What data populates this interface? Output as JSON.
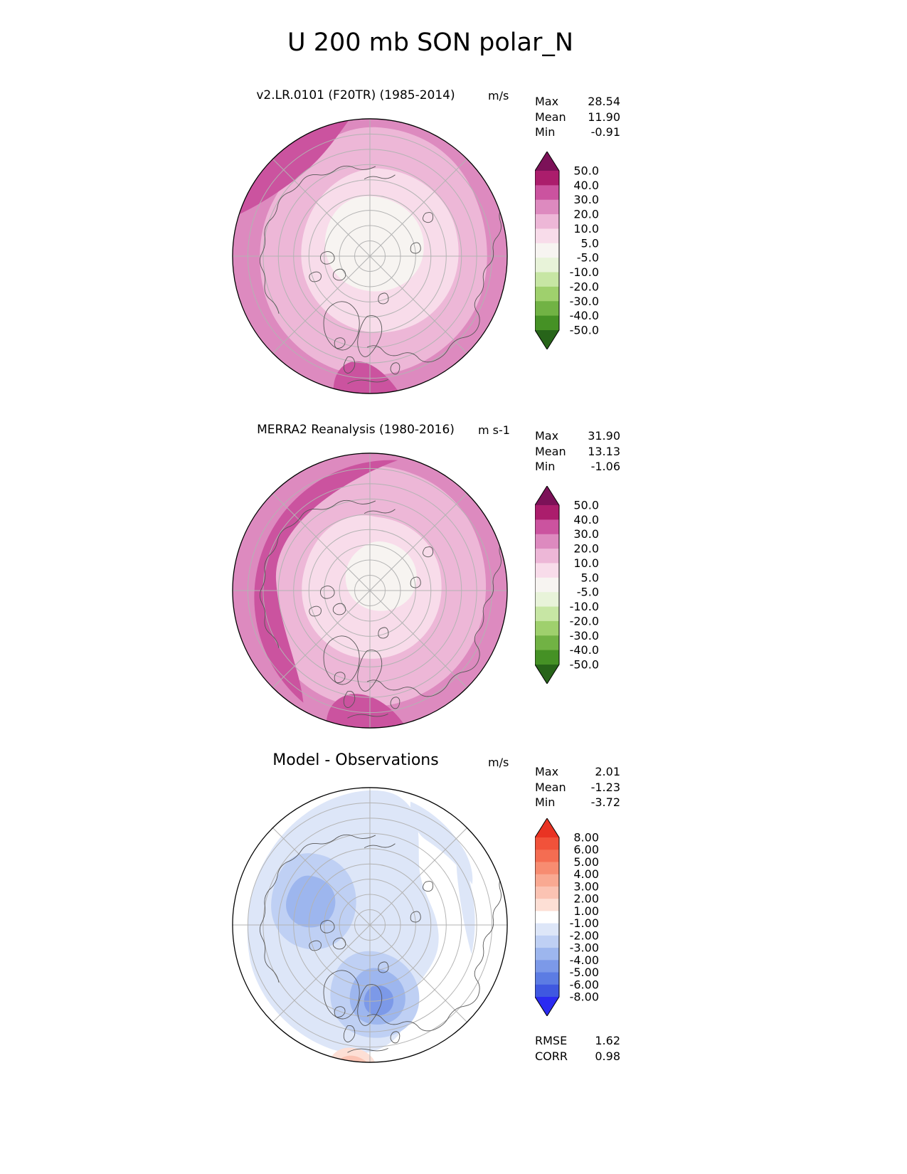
{
  "figure_title": "U 200 mb SON polar_N",
  "stat_labels": {
    "max": "Max",
    "mean": "Mean",
    "min": "Min",
    "rmse": "RMSE",
    "corr": "CORR"
  },
  "panels": [
    {
      "title": "v2.LR.0101 (F20TR) (1985-2014)",
      "units": "m/s",
      "stats": {
        "max": "28.54",
        "mean": "11.90",
        "min": "-0.91"
      },
      "colorbar": {
        "tick_labels": [
          "50.0",
          "40.0",
          "30.0",
          "20.0",
          "10.0",
          "5.0",
          "-5.0",
          "-10.0",
          "-20.0",
          "-30.0",
          "-40.0",
          "-50.0"
        ],
        "over_color": "#7c1158",
        "under_color": "#276419",
        "segment_colors": [
          "#ab1d6c",
          "#cb539f",
          "#dd8abf",
          "#edb7d7",
          "#f8dcea",
          "#f7f4f1",
          "#e8f3d9",
          "#c7e6a4",
          "#9fd06d",
          "#71b244",
          "#459125"
        ]
      }
    },
    {
      "title": "MERRA2 Reanalysis (1980-2016)",
      "units": "m s-1",
      "stats": {
        "max": "31.90",
        "mean": "13.13",
        "min": "-1.06"
      },
      "colorbar": {
        "tick_labels": [
          "50.0",
          "40.0",
          "30.0",
          "20.0",
          "10.0",
          "5.0",
          "-5.0",
          "-10.0",
          "-20.0",
          "-30.0",
          "-40.0",
          "-50.0"
        ],
        "over_color": "#7c1158",
        "under_color": "#276419",
        "segment_colors": [
          "#ab1d6c",
          "#cb539f",
          "#dd8abf",
          "#edb7d7",
          "#f8dcea",
          "#f7f4f1",
          "#e8f3d9",
          "#c7e6a4",
          "#9fd06d",
          "#71b244",
          "#459125"
        ]
      }
    },
    {
      "title": "Model - Observations",
      "units": "m/s",
      "stats": {
        "max": "2.01",
        "mean": "-1.23",
        "min": "-3.72",
        "rmse": "1.62",
        "corr": "0.98"
      },
      "colorbar": {
        "tick_labels": [
          "8.00",
          "6.00",
          "5.00",
          "4.00",
          "3.00",
          "2.00",
          "1.00",
          "-1.00",
          "-2.00",
          "-3.00",
          "-4.00",
          "-5.00",
          "-6.00",
          "-8.00"
        ],
        "over_color": "#e93323",
        "under_color": "#2b2bf1",
        "segment_colors": [
          "#f1523a",
          "#f46d52",
          "#f78c71",
          "#f9a992",
          "#fbc3b3",
          "#fddfd5",
          "#ffffff",
          "#dde6f8",
          "#bfd0f4",
          "#9db6ee",
          "#7c99e8",
          "#5c7ce3",
          "#3f58e0"
        ]
      }
    }
  ],
  "chart_data": [
    {
      "type": "heatmap",
      "subtype": "polar_stereographic_contour_map",
      "region": "polar_N (Northern Hemisphere polar view)",
      "variable": "U",
      "level": "200 mb",
      "season": "SON",
      "title": "v2.LR.0101 (F20TR) (1985-2014)",
      "units": "m/s",
      "contour_levels": [
        -50,
        -40,
        -30,
        -20,
        -10,
        -5,
        5,
        10,
        20,
        30,
        40,
        50
      ],
      "stats": {
        "max": 28.54,
        "mean": 11.9,
        "min": -0.91
      },
      "palette": "diverging pink/magenta (positive) to green (negative), white near zero",
      "grid": "polar graticule: latitude circles and longitude spokes every 45 degrees"
    },
    {
      "type": "heatmap",
      "subtype": "polar_stereographic_contour_map",
      "region": "polar_N (Northern Hemisphere polar view)",
      "variable": "U",
      "level": "200 mb",
      "season": "SON",
      "title": "MERRA2 Reanalysis (1980-2016)",
      "units": "m s-1",
      "contour_levels": [
        -50,
        -40,
        -30,
        -20,
        -10,
        -5,
        5,
        10,
        20,
        30,
        40,
        50
      ],
      "stats": {
        "max": 31.9,
        "mean": 13.13,
        "min": -1.06
      },
      "palette": "diverging pink/magenta (positive) to green (negative), white near zero",
      "grid": "polar graticule: latitude circles and longitude spokes every 45 degrees"
    },
    {
      "type": "heatmap",
      "subtype": "polar_stereographic_contour_map",
      "region": "polar_N (Northern Hemisphere polar view)",
      "variable": "U difference",
      "level": "200 mb",
      "season": "SON",
      "title": "Model - Observations",
      "units": "m/s",
      "contour_levels": [
        -8,
        -6,
        -5,
        -4,
        -3,
        -2,
        -1,
        1,
        2,
        3,
        4,
        5,
        6,
        8
      ],
      "stats": {
        "max": 2.01,
        "mean": -1.23,
        "min": -3.72,
        "rmse": 1.62,
        "corr": 0.98
      },
      "palette": "diverging red (positive) to blue (negative), white near zero",
      "grid": "polar graticule: latitude circles and longitude spokes every 45 degrees"
    }
  ]
}
